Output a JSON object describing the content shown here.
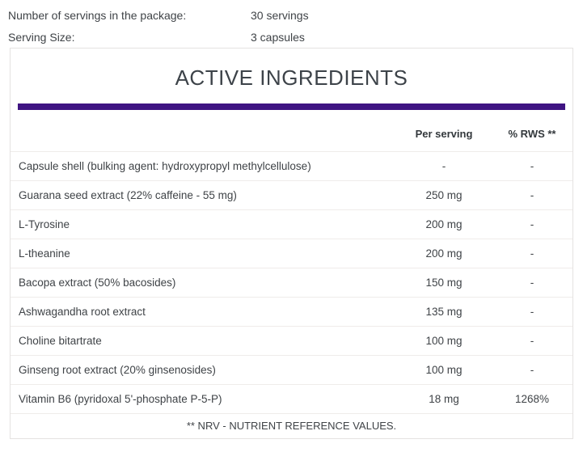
{
  "accent_color": "#3F1482",
  "serving_info": {
    "rows": [
      {
        "label": "Number of servings in the package:",
        "value": "30 servings"
      },
      {
        "label": "Serving Size:",
        "value": "3 capsules"
      }
    ]
  },
  "panel": {
    "title": "ACTIVE INGREDIENTS",
    "table": {
      "header_per_serving": "Per serving",
      "header_rws": "% RWS **",
      "rows": [
        {
          "name": "Capsule shell (bulking agent: hydroxypropyl methylcellulose)",
          "per_serving": "-",
          "rws": "-"
        },
        {
          "name": "Guarana seed extract (22% caffeine - 55 mg)",
          "per_serving": "250 mg",
          "rws": "-"
        },
        {
          "name": "L-Tyrosine",
          "per_serving": "200 mg",
          "rws": "-"
        },
        {
          "name": "L-theanine",
          "per_serving": "200 mg",
          "rws": "-"
        },
        {
          "name": "Bacopa extract (50% bacosides)",
          "per_serving": "150 mg",
          "rws": "-"
        },
        {
          "name": "Ashwagandha root extract",
          "per_serving": "135 mg",
          "rws": "-"
        },
        {
          "name": "Choline bitartrate",
          "per_serving": "100 mg",
          "rws": "-"
        },
        {
          "name": "Ginseng root extract (20% ginsenosides)",
          "per_serving": "100 mg",
          "rws": "-"
        },
        {
          "name": "Vitamin B6 (pyridoxal 5'-phosphate P-5-P)",
          "per_serving": "18 mg",
          "rws": "1268%"
        }
      ],
      "footnote": "** NRV - NUTRIENT REFERENCE VALUES."
    }
  }
}
